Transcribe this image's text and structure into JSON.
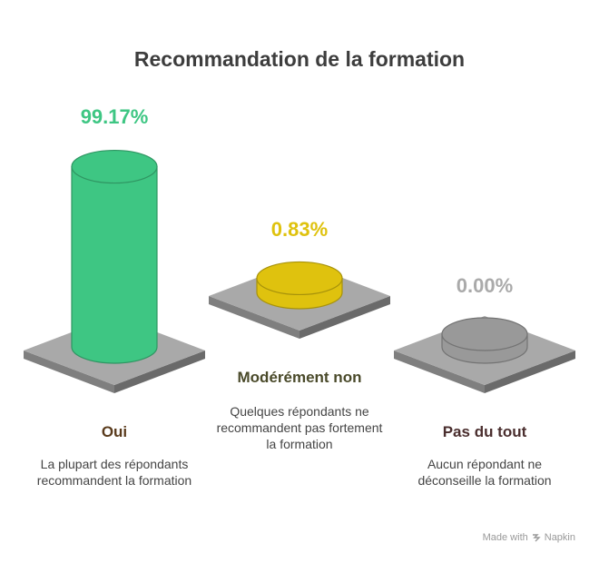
{
  "title": "Recommandation de la formation",
  "chart_data": {
    "type": "bar",
    "title": "Recommandation de la formation",
    "categories": [
      "Oui",
      "Modérément non",
      "Pas du tout"
    ],
    "values": [
      99.17,
      0.83,
      0.0
    ],
    "value_labels": [
      "99.17%",
      "0.83%",
      "0.00%"
    ],
    "descriptions": [
      "La plupart des répondants recommandent la formation",
      "Quelques répondants ne recommandent pas fortement la formation",
      "Aucun répondant ne déconseille la formation"
    ],
    "colors": [
      "#3ec683",
      "#dfc20e",
      "#999999"
    ],
    "label_colors": [
      "#3ec683",
      "#dfc20e",
      "#aaaaaa"
    ],
    "category_colors": [
      "#5a3b1c",
      "#4a4a2a",
      "#4a2e2e"
    ],
    "ylim": [
      0,
      100
    ]
  },
  "footer": {
    "prefix": "Made with",
    "brand": "Napkin"
  }
}
